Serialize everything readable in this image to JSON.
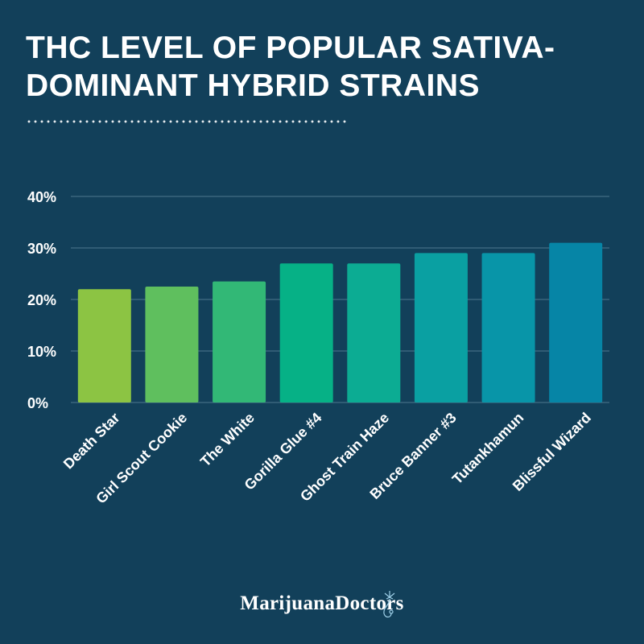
{
  "page": {
    "title_line1": "THC LEVEL OF POPULAR SATIVA-",
    "title_line2": "DOMINANT HYBRID STRAINS",
    "brand_part1": "Marijuana",
    "brand_part2": "Doctors",
    "background_color": "#12405a"
  },
  "chart_data": {
    "type": "bar",
    "title": "THC LEVEL OF POPULAR SATIVA-DOMINANT HYBRID STRAINS",
    "xlabel": "",
    "ylabel": "",
    "categories": [
      "Death Star",
      "Girl Scout Cookie",
      "The White",
      "Gorilla Glue #4",
      "Ghost Train Haze",
      "Bruce Banner #3",
      "Tutankhamun",
      "Blissful Wizard"
    ],
    "values": [
      22,
      22.5,
      23.5,
      27,
      27,
      29,
      29,
      31
    ],
    "unit": "%",
    "ylim": [
      0,
      40
    ],
    "yticks": [
      0,
      10,
      20,
      30,
      40
    ],
    "ytick_labels": [
      "0%",
      "10%",
      "20%",
      "30%",
      "40%"
    ],
    "grid": true,
    "bar_colors": [
      "#8cc443",
      "#5fbf5e",
      "#32b876",
      "#06b186",
      "#0cac93",
      "#0aa0a2",
      "#0895a8",
      "#0685a6"
    ]
  }
}
